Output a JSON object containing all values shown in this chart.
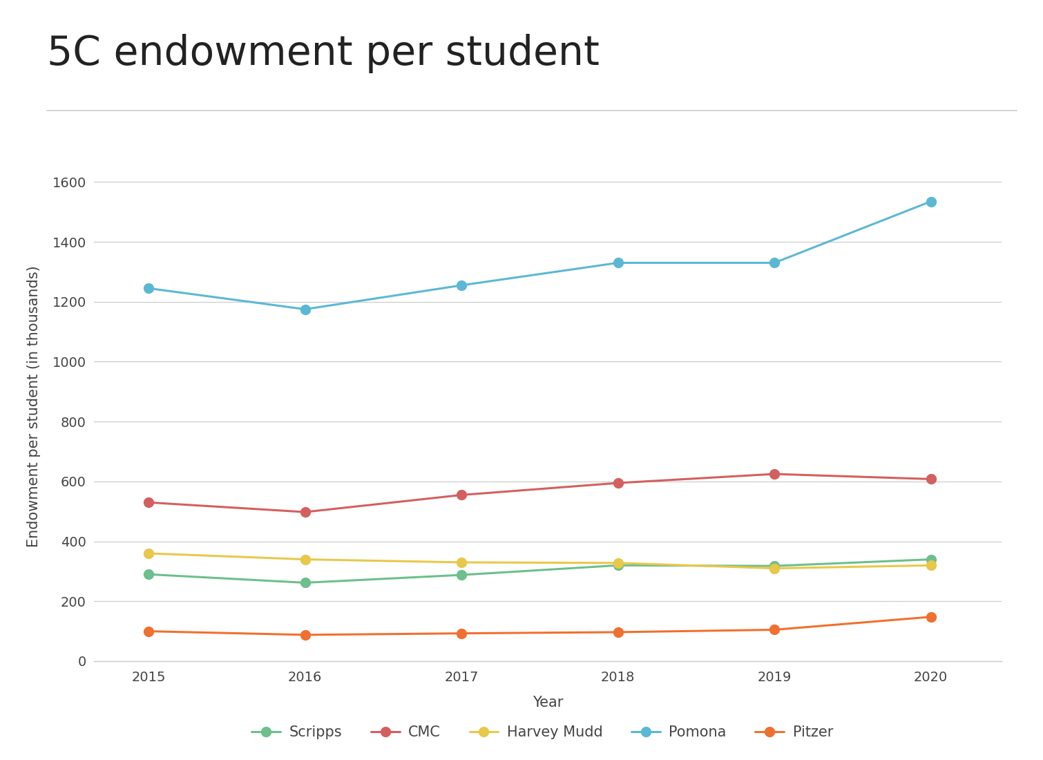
{
  "title": "5C endowment per student",
  "xlabel": "Year",
  "ylabel": "Endowment per student (in thousands)",
  "years": [
    2015,
    2016,
    2017,
    2018,
    2019,
    2020
  ],
  "series": {
    "Scripps": {
      "values": [
        290,
        262,
        288,
        320,
        318,
        340
      ],
      "color": "#6dbf8b",
      "marker": "o"
    },
    "CMC": {
      "values": [
        530,
        498,
        555,
        595,
        625,
        608
      ],
      "color": "#d45f5f",
      "marker": "o"
    },
    "Harvey Mudd": {
      "values": [
        360,
        340,
        330,
        328,
        310,
        320
      ],
      "color": "#e8c84a",
      "marker": "o"
    },
    "Pomona": {
      "values": [
        1245,
        1175,
        1255,
        1330,
        1330,
        1535
      ],
      "color": "#5bb8d4",
      "marker": "o"
    },
    "Pitzer": {
      "values": [
        100,
        88,
        93,
        97,
        105,
        148
      ],
      "color": "#f07030",
      "marker": "o"
    }
  },
  "ylim": [
    0,
    1700
  ],
  "yticks": [
    0,
    200,
    400,
    600,
    800,
    1000,
    1200,
    1400,
    1600
  ],
  "background_color": "#ffffff",
  "grid_color": "#cccccc",
  "title_fontsize": 42,
  "axis_fontsize": 15,
  "tick_fontsize": 14,
  "legend_fontsize": 15,
  "line_width": 2.2,
  "marker_size": 10
}
